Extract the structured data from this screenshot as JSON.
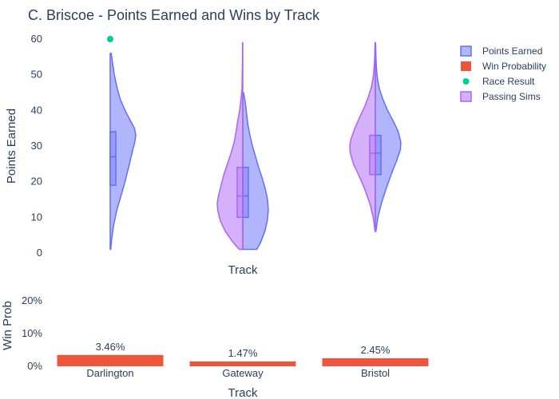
{
  "title": "C. Briscoe - Points Earned and Wins by Track",
  "colors": {
    "points": "#636efa",
    "passing": "#ab63fa",
    "win": "#ef553b",
    "result": "#00cc96",
    "text": "#2a3f5f"
  },
  "legend": [
    {
      "label": "Points Earned",
      "kind": "violin",
      "color": "#636efa"
    },
    {
      "label": "Win Probability",
      "kind": "bar",
      "color": "#ef553b"
    },
    {
      "label": "Race Result",
      "kind": "dot",
      "color": "#00cc96"
    },
    {
      "label": "Passing Sims",
      "kind": "violin",
      "color": "#ab63fa"
    }
  ],
  "chart_data": [
    {
      "type": "violin",
      "xlabel": "Track",
      "ylabel": "Points Earned",
      "ylim": [
        0,
        60
      ],
      "yticks": [
        0,
        10,
        20,
        30,
        40,
        50,
        60
      ],
      "categories": [
        "Darlington",
        "Gateway",
        "Bristol"
      ],
      "series": [
        {
          "name": "Points Earned",
          "side": "positive",
          "profiles": [
            [
              [
                1,
                0.02
              ],
              [
                4,
                0.06
              ],
              [
                8,
                0.14
              ],
              [
                12,
                0.26
              ],
              [
                16,
                0.42
              ],
              [
                20,
                0.58
              ],
              [
                24,
                0.72
              ],
              [
                28,
                0.85
              ],
              [
                31,
                0.96
              ],
              [
                33,
                1.0
              ],
              [
                35,
                0.95
              ],
              [
                37,
                0.8
              ],
              [
                40,
                0.58
              ],
              [
                43,
                0.4
              ],
              [
                46,
                0.28
              ],
              [
                50,
                0.16
              ],
              [
                54,
                0.08
              ],
              [
                56,
                0.04
              ]
            ],
            [
              [
                1,
                0.55
              ],
              [
                3,
                0.7
              ],
              [
                6,
                0.86
              ],
              [
                9,
                0.96
              ],
              [
                12,
                1.0
              ],
              [
                15,
                0.97
              ],
              [
                18,
                0.88
              ],
              [
                21,
                0.76
              ],
              [
                24,
                0.62
              ],
              [
                27,
                0.5
              ],
              [
                30,
                0.38
              ],
              [
                33,
                0.28
              ],
              [
                36,
                0.2
              ],
              [
                39,
                0.15
              ],
              [
                41,
                0.12
              ],
              [
                43,
                0.08
              ],
              [
                45,
                0.03
              ]
            ],
            [
              [
                6,
                0.02
              ],
              [
                10,
                0.1
              ],
              [
                14,
                0.24
              ],
              [
                18,
                0.42
              ],
              [
                22,
                0.62
              ],
              [
                26,
                0.84
              ],
              [
                29,
                0.98
              ],
              [
                31,
                1.0
              ],
              [
                34,
                0.9
              ],
              [
                37,
                0.7
              ],
              [
                40,
                0.48
              ],
              [
                43,
                0.3
              ],
              [
                46,
                0.16
              ],
              [
                49,
                0.08
              ],
              [
                52,
                0.04
              ],
              [
                56,
                0.02
              ],
              [
                59,
                0.01
              ]
            ]
          ],
          "box": [
            {
              "q1": 19,
              "median": 27,
              "q3": 34
            },
            {
              "q1": 10,
              "median": 16,
              "q3": 24
            },
            {
              "q1": 22,
              "median": 28,
              "q3": 33
            }
          ]
        },
        {
          "name": "Passing Sims",
          "side": "negative",
          "profiles": [
            [],
            [
              [
                1,
                0.14
              ],
              [
                3,
                0.38
              ],
              [
                6,
                0.68
              ],
              [
                9,
                0.88
              ],
              [
                12,
                0.98
              ],
              [
                14,
                1.0
              ],
              [
                16,
                0.95
              ],
              [
                19,
                0.85
              ],
              [
                22,
                0.74
              ],
              [
                25,
                0.6
              ],
              [
                28,
                0.46
              ],
              [
                31,
                0.34
              ],
              [
                34,
                0.26
              ],
              [
                37,
                0.2
              ],
              [
                40,
                0.12
              ],
              [
                43,
                0.07
              ],
              [
                46,
                0.03
              ],
              [
                50,
                0.02
              ],
              [
                54,
                0.01
              ],
              [
                59,
                0.01
              ]
            ],
            [
              [
                6,
                0.01
              ],
              [
                10,
                0.08
              ],
              [
                14,
                0.22
              ],
              [
                18,
                0.42
              ],
              [
                22,
                0.66
              ],
              [
                25,
                0.86
              ],
              [
                28,
                0.98
              ],
              [
                30,
                1.0
              ],
              [
                32,
                0.95
              ],
              [
                35,
                0.8
              ],
              [
                38,
                0.62
              ],
              [
                41,
                0.42
              ],
              [
                44,
                0.26
              ],
              [
                47,
                0.14
              ],
              [
                50,
                0.07
              ],
              [
                54,
                0.03
              ],
              [
                59,
                0.01
              ]
            ]
          ],
          "box": [
            null,
            {
              "q1": 10,
              "median": 16,
              "q3": 24
            },
            {
              "q1": 22,
              "median": 28,
              "q3": 33
            }
          ]
        },
        {
          "name": "Race Result",
          "type": "scatter",
          "points": [
            {
              "category": "Darlington",
              "y": 60
            }
          ]
        }
      ]
    },
    {
      "type": "bar",
      "xlabel": "Track",
      "ylabel": "Win Prob",
      "ylim": [
        0,
        0.22
      ],
      "yticks": [
        0,
        0.1,
        0.2
      ],
      "ytick_labels": [
        "0%",
        "10%",
        "20%"
      ],
      "categories": [
        "Darlington",
        "Gateway",
        "Bristol"
      ],
      "values": [
        0.0346,
        0.0147,
        0.0245
      ],
      "labels": [
        "3.46%",
        "1.47%",
        "2.45%"
      ]
    }
  ]
}
